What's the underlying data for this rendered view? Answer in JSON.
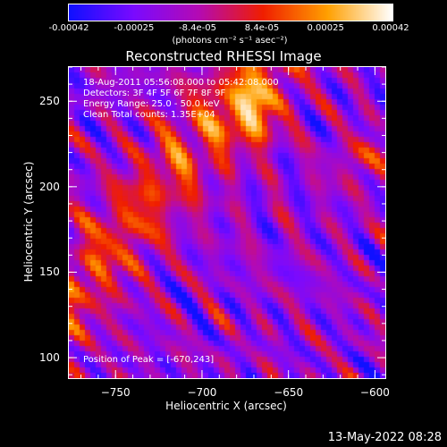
{
  "colorbar": {
    "ticks": [
      "-0.00042",
      "-0.00025",
      "-8.4e-05",
      "8.4e-05",
      "0.00025",
      "0.00042"
    ],
    "tick_values": [
      -0.00042,
      -0.00025,
      -8.4e-05,
      8.4e-05,
      0.00025,
      0.00042
    ],
    "unit_label": "(photons cm⁻² s⁻¹ asec⁻²)",
    "colors": [
      "#1010ff",
      "#7a0aff",
      "#b40ab4",
      "#f01e00",
      "#ffa000",
      "#ffffff"
    ]
  },
  "chart_data": {
    "type": "heatmap",
    "title": "Reconstructed RHESSI Image",
    "xlabel": "Heliocentric X (arcsec)",
    "ylabel": "Heliocentric Y (arcsec)",
    "xlim": [
      -777,
      -594
    ],
    "ylim": [
      88,
      270
    ],
    "xticks": [
      -750,
      -700,
      -650,
      -600
    ],
    "yticks": [
      100,
      150,
      200,
      250
    ],
    "xtick_labels": [
      "−750",
      "−700",
      "−650",
      "−600"
    ],
    "ytick_labels": [
      "100",
      "150",
      "200",
      "250"
    ],
    "vmin": -0.00042,
    "vmax": 0.00042,
    "peak_x": -670,
    "peak_y": 243,
    "annotations": [
      "18-Aug-2011 05:56:08.000 to 05:42:08.000",
      "Detectors: 3F 4F 5F 6F 7F 8F 9F",
      "Energy Range: 25.0 - 50.0 keV",
      "Clean     Total counts: 1.35E+04"
    ],
    "peak_label": "Position of Peak = [-670,243]"
  },
  "footer": {
    "date": "13-May-2022 08:28"
  }
}
